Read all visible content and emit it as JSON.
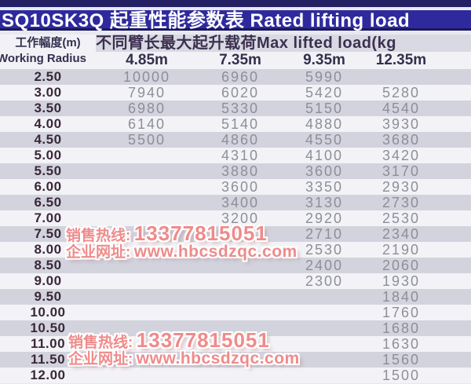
{
  "title": "SQ10SK3Q 起重性能参数表 Rated lifting load",
  "table": {
    "radius_header_zh": "工作幅度(m)",
    "radius_header_en": "Working Radius",
    "load_header": "不同臂长最大起升载荷Max lifted load(kg",
    "boom_lengths": [
      "4.85m",
      "7.35m",
      "9.35m",
      "12.35m"
    ],
    "rows": [
      {
        "radius": "2.50",
        "values": [
          "10000",
          "6960",
          "5990",
          ""
        ]
      },
      {
        "radius": "3.00",
        "values": [
          "7940",
          "6020",
          "5420",
          "5280"
        ]
      },
      {
        "radius": "3.50",
        "values": [
          "6980",
          "5330",
          "5150",
          "4540"
        ]
      },
      {
        "radius": "4.00",
        "values": [
          "6140",
          "5140",
          "4880",
          "3930"
        ]
      },
      {
        "radius": "4.50",
        "values": [
          "5500",
          "4860",
          "4550",
          "3680"
        ]
      },
      {
        "radius": "5.00",
        "values": [
          "",
          "4310",
          "4100",
          "3420"
        ]
      },
      {
        "radius": "5.50",
        "values": [
          "",
          "3880",
          "3600",
          "3170"
        ]
      },
      {
        "radius": "6.00",
        "values": [
          "",
          "3600",
          "3350",
          "2930"
        ]
      },
      {
        "radius": "6.50",
        "values": [
          "",
          "3400",
          "3130",
          "2730"
        ]
      },
      {
        "radius": "7.00",
        "values": [
          "",
          "3200",
          "2920",
          "2530"
        ]
      },
      {
        "radius": "7.50",
        "values": [
          "",
          "",
          "2710",
          "2340"
        ]
      },
      {
        "radius": "8.00",
        "values": [
          "",
          "",
          "2530",
          "2190"
        ]
      },
      {
        "radius": "8.50",
        "values": [
          "",
          "",
          "2400",
          "2060"
        ]
      },
      {
        "radius": "9.00",
        "values": [
          "",
          "",
          "2300",
          "1930"
        ]
      },
      {
        "radius": "9.50",
        "values": [
          "",
          "",
          "",
          "1840"
        ]
      },
      {
        "radius": "10.00",
        "values": [
          "",
          "",
          "",
          "1760"
        ]
      },
      {
        "radius": "10.50",
        "values": [
          "",
          "",
          "",
          "1680"
        ]
      },
      {
        "radius": "11.00",
        "values": [
          "",
          "",
          "",
          "1630"
        ]
      },
      {
        "radius": "11.50",
        "values": [
          "",
          "",
          "",
          "1560"
        ]
      },
      {
        "radius": "12.00",
        "values": [
          "",
          "",
          "",
          "1500"
        ]
      }
    ]
  },
  "watermark": {
    "hotline_label": "销售热线:",
    "hotline_number": "13377815051",
    "website_label": "企业网址:",
    "website_url": "www.hbcsdzqc.com"
  },
  "colors": {
    "accent_indigo": "#2e2a9d",
    "top_strip": "#232063",
    "header_band_bg": "#d8d9e2",
    "row_shaded": "#d2d3dd",
    "row_plain": "#f3f3f7",
    "radius_text": "#3a2839",
    "value_text": "#8e8e99",
    "watermark_pink": "#ef8b8b"
  }
}
